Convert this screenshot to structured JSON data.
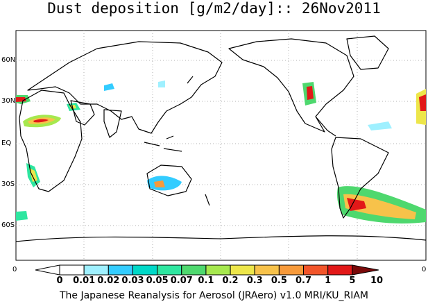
{
  "title": "Dust deposition [g/m2/day]:: 26Nov2011",
  "footer": "The Japanese Reanalysis for Aerosol (JRAero) v1.0 MRI/KU_RIAM",
  "lat_labels": [
    "60N",
    "30N",
    "EQ",
    "30S",
    "60S"
  ],
  "axis_zero_left": "0",
  "axis_zero_right": "0",
  "colorbar": {
    "labels": [
      "0",
      "0.01",
      "0.02",
      "0.03",
      "0.05",
      "0.07",
      "0.1",
      "0.2",
      "0.3",
      "0.5",
      "0.7",
      "1",
      "5",
      "10"
    ],
    "colors": [
      "#ffffff",
      "#9ff0ff",
      "#33ccff",
      "#00d8c8",
      "#2ee6a0",
      "#4ed86e",
      "#a6e84e",
      "#ede64a",
      "#f7c24a",
      "#f79a3a",
      "#f2552a",
      "#e21818",
      "#b40c0c",
      "#7a0a0a"
    ]
  },
  "colors": {
    "coast": "#000000",
    "grid": "#b0b0b0"
  }
}
